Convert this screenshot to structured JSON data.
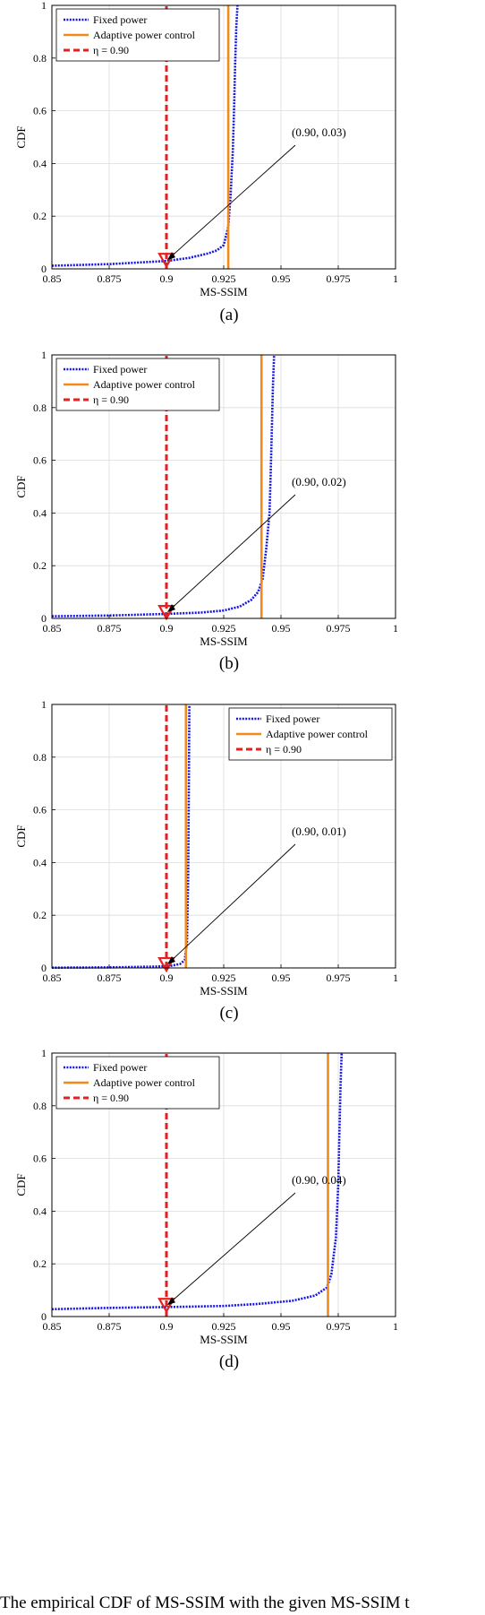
{
  "caption": "The empirical CDF of MS-SSIM with the given MS-SSIM t",
  "colors": {
    "fixed": "#1515e6",
    "adaptive": "#f08a1a",
    "eta": "#e62020",
    "marker": "#e62020",
    "grid": "#dcdcdc"
  },
  "chart_data": [
    {
      "type": "line",
      "panel_label": "(a)",
      "xlabel": "MS-SSIM",
      "ylabel": "CDF",
      "xlim": [
        0.85,
        1
      ],
      "ylim": [
        0,
        1
      ],
      "xticks": [
        "0.85",
        "0.875",
        "0.9",
        "0.925",
        "0.95",
        "0.975",
        "1"
      ],
      "yticks": [
        "0",
        "0.2",
        "0.4",
        "0.6",
        "0.8",
        "1"
      ],
      "grid": true,
      "legend_position": "top-left",
      "legend": [
        "Fixed power",
        "Adaptive power control",
        "η = 0.90"
      ],
      "series": [
        {
          "name": "Fixed power",
          "style": "dotted",
          "x": [
            0.85,
            0.875,
            0.9,
            0.91,
            0.918,
            0.922,
            0.925,
            0.927,
            0.928,
            0.929,
            0.9295,
            0.93,
            0.9305,
            0.931
          ],
          "y": [
            0.012,
            0.018,
            0.03,
            0.042,
            0.058,
            0.07,
            0.09,
            0.16,
            0.28,
            0.45,
            0.6,
            0.78,
            0.92,
            1.0
          ]
        },
        {
          "name": "Adaptive power control",
          "style": "solid",
          "x": [
            0.927,
            0.927
          ],
          "y": [
            0,
            1
          ]
        },
        {
          "name": "η = 0.90",
          "style": "dashed",
          "x": [
            0.9,
            0.9
          ],
          "y": [
            0,
            1
          ]
        }
      ],
      "annotation": {
        "text": "(0.90, 0.03)",
        "point": [
          0.9,
          0.03
        ]
      }
    },
    {
      "type": "line",
      "panel_label": "(b)",
      "xlabel": "MS-SSIM",
      "ylabel": "CDF",
      "xlim": [
        0.85,
        1
      ],
      "ylim": [
        0,
        1
      ],
      "xticks": [
        "0.85",
        "0.875",
        "0.9",
        "0.925",
        "0.95",
        "0.975",
        "1"
      ],
      "yticks": [
        "0",
        "0.2",
        "0.4",
        "0.6",
        "0.8",
        "1"
      ],
      "grid": true,
      "legend_position": "top-left",
      "legend": [
        "Fixed power",
        "Adaptive power control",
        "η = 0.90"
      ],
      "series": [
        {
          "name": "Fixed power",
          "style": "dotted",
          "x": [
            0.85,
            0.875,
            0.9,
            0.915,
            0.925,
            0.932,
            0.937,
            0.94,
            0.942,
            0.9435,
            0.945,
            0.9455,
            0.946,
            0.9465,
            0.947
          ],
          "y": [
            0.008,
            0.011,
            0.017,
            0.022,
            0.03,
            0.045,
            0.07,
            0.1,
            0.15,
            0.26,
            0.4,
            0.55,
            0.72,
            0.88,
            1.0
          ]
        },
        {
          "name": "Adaptive power control",
          "style": "solid",
          "x": [
            0.9415,
            0.9415
          ],
          "y": [
            0,
            1
          ]
        },
        {
          "name": "η = 0.90",
          "style": "dashed",
          "x": [
            0.9,
            0.9
          ],
          "y": [
            0,
            1
          ]
        }
      ],
      "annotation": {
        "text": "(0.90, 0.02)",
        "point": [
          0.9,
          0.02
        ]
      }
    },
    {
      "type": "line",
      "panel_label": "(c)",
      "xlabel": "MS-SSIM",
      "ylabel": "CDF",
      "xlim": [
        0.85,
        1
      ],
      "ylim": [
        0,
        1
      ],
      "xticks": [
        "0.85",
        "0.875",
        "0.9",
        "0.925",
        "0.95",
        "0.975",
        "1"
      ],
      "yticks": [
        "0",
        "0.2",
        "0.4",
        "0.6",
        "0.8",
        "1"
      ],
      "grid": true,
      "legend_position": "top-right",
      "legend": [
        "Fixed power",
        "Adaptive power control",
        "η = 0.90"
      ],
      "series": [
        {
          "name": "Fixed power",
          "style": "dotted",
          "x": [
            0.85,
            0.875,
            0.895,
            0.902,
            0.906,
            0.908,
            0.909,
            0.9095,
            0.9098,
            0.91
          ],
          "y": [
            0.001,
            0.002,
            0.005,
            0.008,
            0.015,
            0.03,
            0.1,
            0.35,
            0.7,
            1.0
          ]
        },
        {
          "name": "Adaptive power control",
          "style": "solid",
          "x": [
            0.9085,
            0.9085
          ],
          "y": [
            0,
            1
          ]
        },
        {
          "name": "η = 0.90",
          "style": "dashed",
          "x": [
            0.9,
            0.9
          ],
          "y": [
            0,
            1
          ]
        }
      ],
      "annotation": {
        "text": "(0.90, 0.01)",
        "point": [
          0.9,
          0.01
        ]
      }
    },
    {
      "type": "line",
      "panel_label": "(d)",
      "xlabel": "MS-SSIM",
      "ylabel": "CDF",
      "xlim": [
        0.85,
        1
      ],
      "ylim": [
        0,
        1
      ],
      "xticks": [
        "0.85",
        "0.875",
        "0.9",
        "0.925",
        "0.95",
        "0.975",
        "1"
      ],
      "yticks": [
        "0",
        "0.2",
        "0.4",
        "0.6",
        "0.8",
        "1"
      ],
      "grid": true,
      "legend_position": "top-left",
      "legend": [
        "Fixed power",
        "Adaptive power control",
        "η = 0.90"
      ],
      "series": [
        {
          "name": "Fixed power",
          "style": "dotted",
          "x": [
            0.85,
            0.875,
            0.9,
            0.925,
            0.94,
            0.955,
            0.965,
            0.97,
            0.972,
            0.974,
            0.975,
            0.9755,
            0.976,
            0.9765
          ],
          "y": [
            0.028,
            0.033,
            0.036,
            0.04,
            0.048,
            0.06,
            0.08,
            0.11,
            0.16,
            0.3,
            0.5,
            0.7,
            0.88,
            1.0
          ]
        },
        {
          "name": "Adaptive power control",
          "style": "solid",
          "x": [
            0.9705,
            0.9705
          ],
          "y": [
            0,
            1
          ]
        },
        {
          "name": "η = 0.90",
          "style": "dashed",
          "x": [
            0.9,
            0.9
          ],
          "y": [
            0,
            1
          ]
        }
      ],
      "annotation": {
        "text": "(0.90, 0.04)",
        "point": [
          0.9,
          0.04
        ]
      }
    }
  ]
}
